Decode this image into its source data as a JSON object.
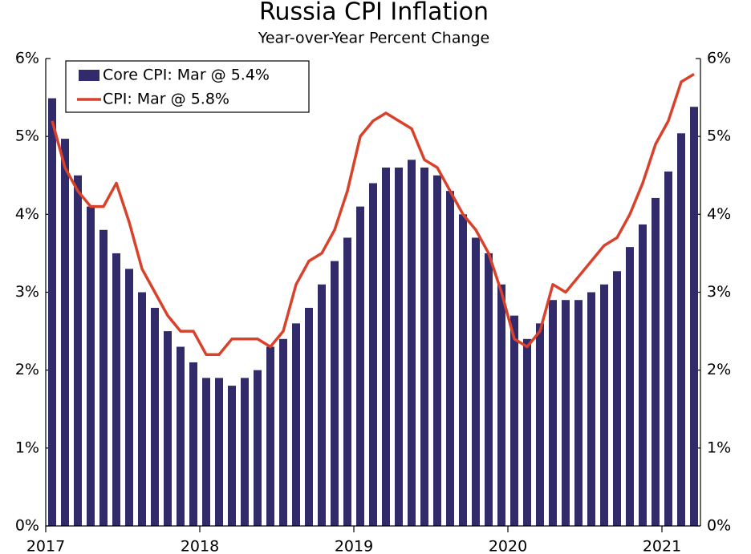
{
  "chart_data": {
    "type": "bar",
    "title": "Russia CPI Inflation",
    "subtitle": "Year-over-Year Percent Change",
    "x": [
      "2017",
      null,
      null,
      null,
      null,
      null,
      null,
      null,
      null,
      null,
      null,
      null,
      "2018",
      null,
      null,
      null,
      null,
      null,
      null,
      null,
      null,
      null,
      null,
      null,
      "2019",
      null,
      null,
      null,
      null,
      null,
      null,
      null,
      null,
      null,
      null,
      null,
      "2020",
      null,
      null,
      null,
      null,
      null,
      null,
      null,
      null,
      null,
      null,
      null,
      "2021",
      null,
      null
    ],
    "series": [
      {
        "name": "Core CPI: Mar @ 5.4%",
        "type": "bar",
        "color": "#312a6b",
        "values": [
          5.49,
          4.97,
          4.5,
          4.1,
          3.8,
          3.5,
          3.3,
          3.0,
          2.8,
          2.5,
          2.3,
          2.1,
          1.9,
          1.9,
          1.8,
          1.9,
          2.0,
          2.3,
          2.4,
          2.6,
          2.8,
          3.1,
          3.4,
          3.7,
          4.1,
          4.4,
          4.6,
          4.6,
          4.7,
          4.6,
          4.5,
          4.3,
          4.0,
          3.7,
          3.5,
          3.1,
          2.7,
          2.4,
          2.6,
          2.9,
          2.9,
          2.9,
          3.0,
          3.1,
          3.27,
          3.58,
          3.87,
          4.21,
          4.55,
          5.04,
          5.38
        ]
      },
      {
        "name": "CPI: Mar @ 5.8%",
        "type": "line",
        "color": "#d9412b",
        "values": [
          5.2,
          4.6,
          4.3,
          4.1,
          4.1,
          4.4,
          3.9,
          3.3,
          3.0,
          2.7,
          2.5,
          2.5,
          2.2,
          2.2,
          2.4,
          2.4,
          2.4,
          2.3,
          2.5,
          3.1,
          3.4,
          3.5,
          3.8,
          4.3,
          5.0,
          5.2,
          5.3,
          5.2,
          5.1,
          4.7,
          4.6,
          4.3,
          4.0,
          3.8,
          3.5,
          3.0,
          2.4,
          2.3,
          2.5,
          3.1,
          3.0,
          3.2,
          3.4,
          3.6,
          3.7,
          4.0,
          4.4,
          4.9,
          5.2,
          5.7,
          5.8
        ]
      }
    ],
    "ylim": [
      0,
      6
    ],
    "yticks": [
      {
        "value": 0,
        "label": "0%"
      },
      {
        "value": 1,
        "label": "1%"
      },
      {
        "value": 2,
        "label": "2%"
      },
      {
        "value": 3,
        "label": "3%"
      },
      {
        "value": 4,
        "label": "4%"
      },
      {
        "value": 5,
        "label": "5%"
      },
      {
        "value": 6,
        "label": "6%"
      }
    ],
    "y2lim": [
      0,
      6
    ],
    "y2ticks": [
      {
        "value": 0,
        "label": "0%"
      },
      {
        "value": 1,
        "label": "1%"
      },
      {
        "value": 2,
        "label": "2%"
      },
      {
        "value": 3,
        "label": "3%"
      },
      {
        "value": 4,
        "label": "4%"
      },
      {
        "value": 5,
        "label": "5%"
      },
      {
        "value": 6,
        "label": "6%"
      }
    ],
    "legend": "upper-left"
  }
}
